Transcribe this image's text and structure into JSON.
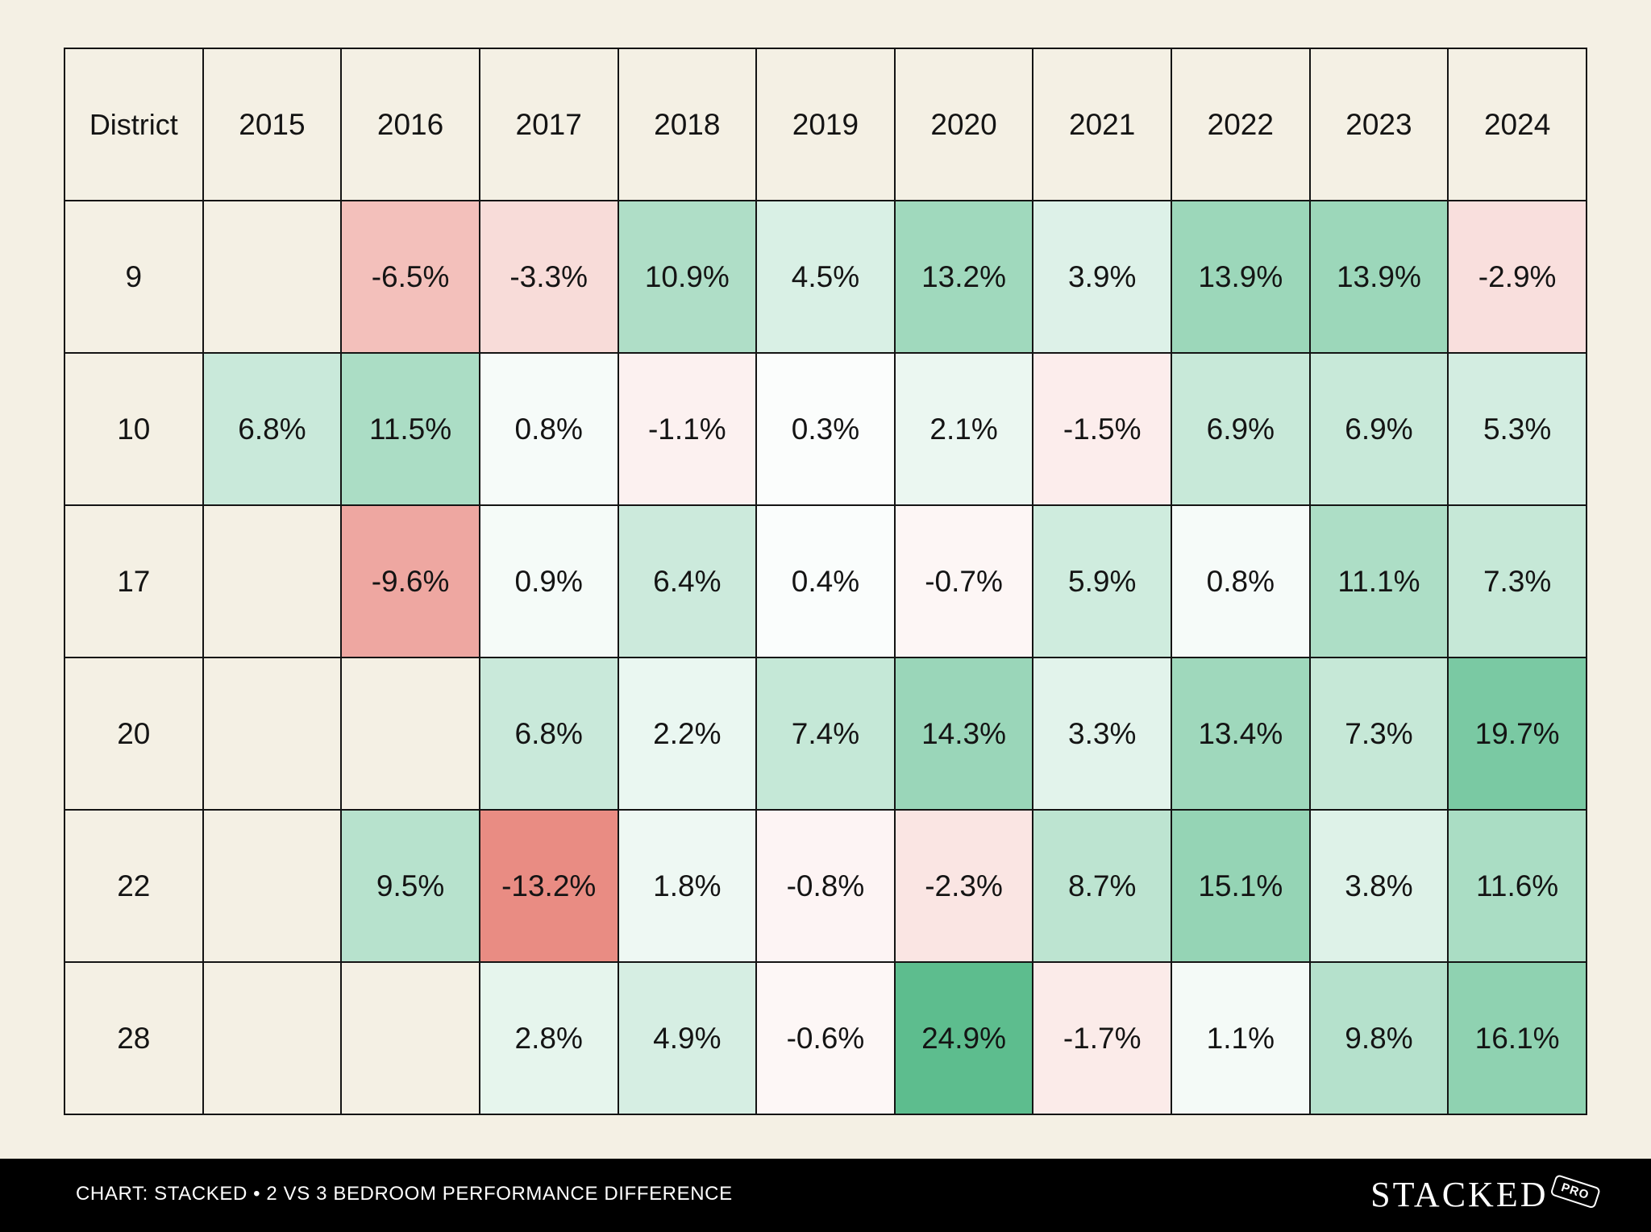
{
  "chart_data": {
    "type": "heatmap",
    "corner_label": "District",
    "columns": [
      "2015",
      "2016",
      "2017",
      "2018",
      "2019",
      "2020",
      "2021",
      "2022",
      "2023",
      "2024"
    ],
    "rows": [
      {
        "label": "9",
        "values": [
          null,
          -6.5,
          -3.3,
          10.9,
          4.5,
          13.2,
          3.9,
          13.9,
          13.9,
          -2.9
        ],
        "cells": [
          "",
          "-6.5%",
          "-3.3%",
          "10.9%",
          "4.5%",
          "13.2%",
          "3.9%",
          "13.9%",
          "13.9%",
          "-2.9%"
        ]
      },
      {
        "label": "10",
        "values": [
          6.8,
          11.5,
          0.8,
          -1.1,
          0.3,
          2.1,
          -1.5,
          6.9,
          6.9,
          5.3
        ],
        "cells": [
          "6.8%",
          "11.5%",
          "0.8%",
          "-1.1%",
          "0.3%",
          "2.1%",
          "-1.5%",
          "6.9%",
          "6.9%",
          "5.3%"
        ]
      },
      {
        "label": "17",
        "values": [
          null,
          -9.6,
          0.9,
          6.4,
          0.4,
          -0.7,
          5.9,
          0.8,
          11.1,
          7.3
        ],
        "cells": [
          "",
          "-9.6%",
          "0.9%",
          "6.4%",
          "0.4%",
          "-0.7%",
          "5.9%",
          "0.8%",
          "11.1%",
          "7.3%"
        ]
      },
      {
        "label": "20",
        "values": [
          null,
          null,
          6.8,
          2.2,
          7.4,
          14.3,
          3.3,
          13.4,
          7.3,
          19.7
        ],
        "cells": [
          "",
          "",
          "6.8%",
          "2.2%",
          "7.4%",
          "14.3%",
          "3.3%",
          "13.4%",
          "7.3%",
          "19.7%"
        ]
      },
      {
        "label": "22",
        "values": [
          null,
          9.5,
          -13.2,
          1.8,
          -0.8,
          -2.3,
          8.7,
          15.1,
          3.8,
          11.6
        ],
        "cells": [
          "",
          "9.5%",
          "-13.2%",
          "1.8%",
          "-0.8%",
          "-2.3%",
          "8.7%",
          "15.1%",
          "3.8%",
          "11.6%"
        ]
      },
      {
        "label": "28",
        "values": [
          null,
          null,
          2.8,
          4.9,
          -0.6,
          24.9,
          -1.7,
          1.1,
          9.8,
          16.1
        ],
        "cells": [
          "",
          "",
          "2.8%",
          "4.9%",
          "-0.6%",
          "24.9%",
          "-1.7%",
          "1.1%",
          "9.8%",
          "16.1%"
        ]
      }
    ],
    "unit": "%",
    "colors": {
      "positive": "#5cbd8e",
      "negative": "#e8867d",
      "neutral": "#ffffff",
      "empty": "#f4f0e4"
    }
  },
  "footer": {
    "caption": "CHART: STACKED • 2 VS 3 BEDROOM PERFORMANCE DIFFERENCE",
    "brand": "STACKED",
    "badge": "PRO"
  },
  "colors": {
    "background": "#f4f0e4",
    "footer_background": "#000000",
    "grid_line": "#141414"
  }
}
